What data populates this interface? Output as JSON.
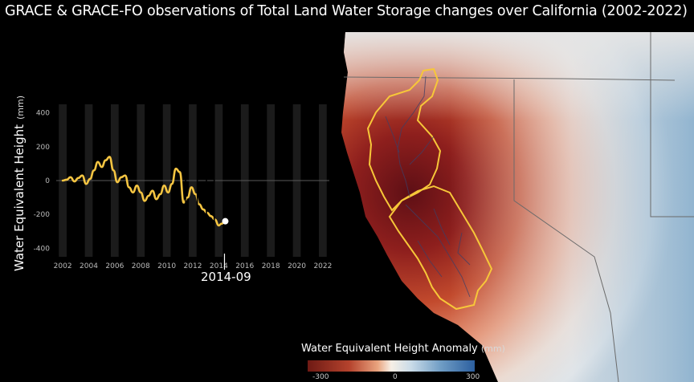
{
  "title": "GRACE & GRACE-FO observations of Total Land Water Storage changes over California (2002-2022)",
  "current_date": "2014-09",
  "legend": {
    "title": "Water Equivalent Height Anomaly",
    "unit": "(mm)",
    "ticks": [
      "-300",
      "0",
      "300"
    ],
    "colors": {
      "negative": "#6e1a14",
      "zero": "#f7efe6",
      "positive": "#2c5f9f"
    }
  },
  "chart_data": {
    "type": "line",
    "ylabel": "Water Equivalent Height",
    "yunit": "(mm)",
    "ylim": [
      -450,
      450
    ],
    "xlim": [
      2001.5,
      2022.5
    ],
    "yticks": [
      400,
      200,
      0,
      -200,
      -400
    ],
    "xticks": [
      2002,
      2004,
      2006,
      2008,
      2010,
      2012,
      2014,
      2016,
      2018,
      2020,
      2022
    ],
    "grid": "vertical year bands",
    "line_color": "#f5c542",
    "series": [
      {
        "x": [
          2002.0,
          2002.3,
          2002.6,
          2002.9,
          2003.2,
          2003.5,
          2003.8,
          2004.1,
          2004.4,
          2004.7,
          2005.0,
          2005.3,
          2005.6,
          2005.9,
          2006.2,
          2006.5,
          2006.8,
          2007.1,
          2007.4,
          2007.7,
          2008.0,
          2008.3,
          2008.6,
          2008.9,
          2009.2,
          2009.5,
          2009.8,
          2010.1,
          2010.4,
          2010.7,
          2011.0,
          2011.3,
          2011.6,
          2011.9,
          2012.2,
          2012.5,
          2012.8,
          2013.1,
          2013.4,
          2013.7,
          2014.0,
          2014.2,
          2014.5
        ],
        "y": [
          0,
          5,
          20,
          -5,
          15,
          30,
          -20,
          10,
          60,
          110,
          80,
          120,
          140,
          60,
          -10,
          20,
          30,
          -40,
          -70,
          -30,
          -70,
          -120,
          -90,
          -60,
          -110,
          -80,
          -30,
          -70,
          -20,
          70,
          50,
          -130,
          -100,
          -40,
          -80,
          -140,
          -170,
          -190,
          -210,
          -230,
          -265,
          -255,
          -240
        ]
      }
    ],
    "gaps": [
      [
        2011.4,
        2011.5
      ],
      [
        2012.3,
        2012.4
      ],
      [
        2013.0,
        2013.1
      ],
      [
        2013.6,
        2013.7
      ]
    ],
    "current_point": {
      "x": 2014.5,
      "y": -240
    }
  }
}
